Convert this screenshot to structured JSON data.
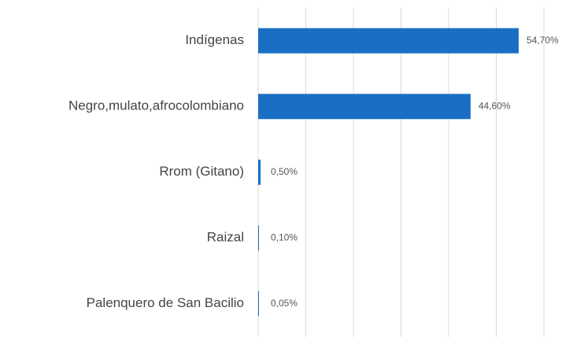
{
  "chart_data": {
    "type": "hbar",
    "categories": [
      "Indígenas",
      "Negro,mulato,afrocolombiano",
      "Rrom (Gitano)",
      "Raizal",
      "Palenquero de San Bacilio"
    ],
    "values": [
      54.7,
      44.6,
      0.5,
      0.1,
      0.05
    ],
    "value_labels": [
      "54,70%",
      "44,60%",
      "0,50%",
      "0,10%",
      "0,05%"
    ],
    "color": "#1a6fc4",
    "xlim": [
      0,
      60
    ],
    "xticks": [
      0,
      10,
      20,
      30,
      40,
      50,
      60
    ],
    "grid": true
  }
}
